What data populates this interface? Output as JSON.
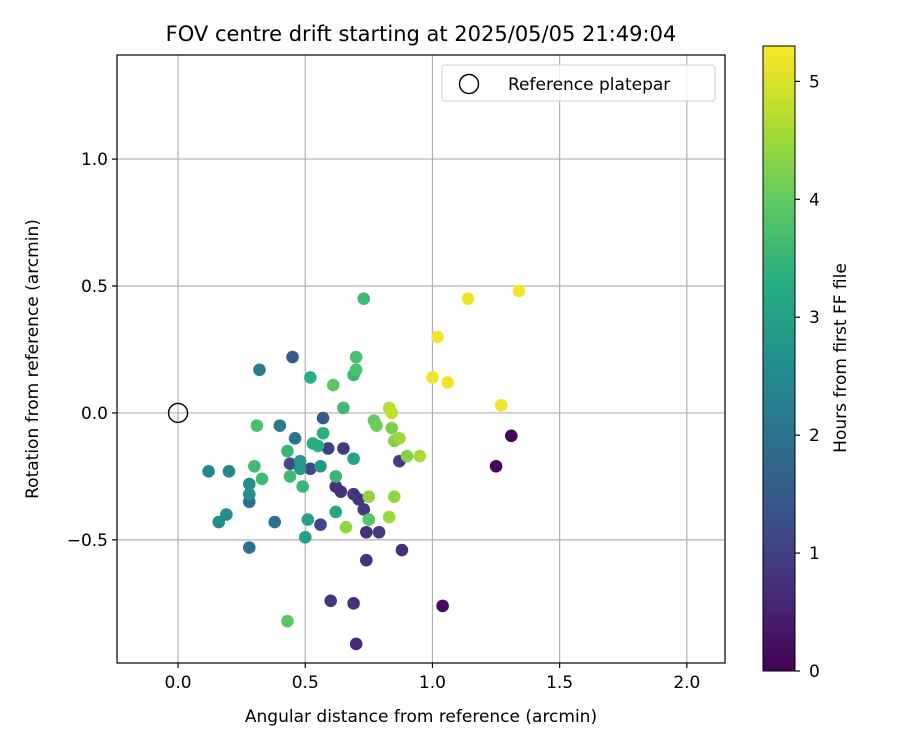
{
  "chart_data": {
    "type": "scatter",
    "title": "FOV centre drift starting at 2025/05/05 21:49:04",
    "xlabel": "Angular distance from reference (arcmin)",
    "ylabel": "Rotation from reference (arcmin)",
    "xlim": [
      -0.24,
      2.15
    ],
    "ylim": [
      -0.985,
      1.41
    ],
    "xticks": [
      0.0,
      0.5,
      1.0,
      1.5,
      2.0
    ],
    "xtick_labels": [
      "0.0",
      "0.5",
      "1.0",
      "1.5",
      "2.0"
    ],
    "yticks": [
      -0.5,
      0.0,
      0.5,
      1.0
    ],
    "ytick_labels": [
      "−0.5",
      "0.0",
      "0.5",
      "1.0"
    ],
    "grid": true,
    "legend": {
      "placement": "top-right",
      "entries": [
        "Reference platepar"
      ]
    },
    "reference_point": {
      "x": 0.0,
      "y": 0.0
    },
    "colorbar": {
      "label": "Hours from first FF file",
      "colormap": "viridis",
      "range": [
        0,
        5.3
      ],
      "ticks": [
        0,
        1,
        2,
        3,
        4,
        5
      ],
      "tick_labels": [
        "0",
        "1",
        "2",
        "3",
        "4",
        "5"
      ]
    },
    "points": [
      {
        "x": 1.31,
        "y": -0.09,
        "h": 0.05
      },
      {
        "x": 1.25,
        "y": -0.21,
        "h": 0.05
      },
      {
        "x": 1.04,
        "y": -0.76,
        "h": 0.15
      },
      {
        "x": 0.7,
        "y": -0.91,
        "h": 0.6
      },
      {
        "x": 0.69,
        "y": -0.75,
        "h": 0.7
      },
      {
        "x": 0.6,
        "y": -0.74,
        "h": 0.8
      },
      {
        "x": 0.74,
        "y": -0.58,
        "h": 0.7
      },
      {
        "x": 0.88,
        "y": -0.54,
        "h": 0.7
      },
      {
        "x": 0.79,
        "y": -0.47,
        "h": 0.9
      },
      {
        "x": 0.74,
        "y": -0.47,
        "h": 0.7
      },
      {
        "x": 0.73,
        "y": -0.38,
        "h": 0.9
      },
      {
        "x": 0.71,
        "y": -0.34,
        "h": 0.8
      },
      {
        "x": 0.69,
        "y": -0.32,
        "h": 0.8
      },
      {
        "x": 0.64,
        "y": -0.31,
        "h": 0.8
      },
      {
        "x": 0.62,
        "y": -0.29,
        "h": 0.7
      },
      {
        "x": 0.87,
        "y": -0.19,
        "h": 0.9
      },
      {
        "x": 0.65,
        "y": -0.14,
        "h": 0.9
      },
      {
        "x": 0.59,
        "y": -0.14,
        "h": 1.0
      },
      {
        "x": 0.56,
        "y": -0.44,
        "h": 1.1
      },
      {
        "x": 0.52,
        "y": -0.22,
        "h": 1.1
      },
      {
        "x": 0.44,
        "y": -0.2,
        "h": 1.2
      },
      {
        "x": 0.57,
        "y": -0.02,
        "h": 1.5
      },
      {
        "x": 0.45,
        "y": 0.22,
        "h": 1.5
      },
      {
        "x": 0.28,
        "y": -0.35,
        "h": 1.9
      },
      {
        "x": 0.38,
        "y": -0.43,
        "h": 1.9
      },
      {
        "x": 0.28,
        "y": -0.53,
        "h": 2.0
      },
      {
        "x": 0.46,
        "y": -0.1,
        "h": 2.0
      },
      {
        "x": 0.4,
        "y": -0.05,
        "h": 2.2
      },
      {
        "x": 0.32,
        "y": 0.17,
        "h": 2.2
      },
      {
        "x": 0.12,
        "y": -0.23,
        "h": 2.5
      },
      {
        "x": 0.2,
        "y": -0.23,
        "h": 2.5
      },
      {
        "x": 0.28,
        "y": -0.28,
        "h": 2.6
      },
      {
        "x": 0.28,
        "y": -0.32,
        "h": 2.6
      },
      {
        "x": 0.19,
        "y": -0.4,
        "h": 2.6
      },
      {
        "x": 0.16,
        "y": -0.43,
        "h": 2.6
      },
      {
        "x": 0.48,
        "y": -0.19,
        "h": 2.8
      },
      {
        "x": 0.48,
        "y": -0.22,
        "h": 2.8
      },
      {
        "x": 0.56,
        "y": -0.21,
        "h": 2.8
      },
      {
        "x": 0.51,
        "y": -0.42,
        "h": 3.0
      },
      {
        "x": 0.5,
        "y": -0.49,
        "h": 3.0
      },
      {
        "x": 0.62,
        "y": -0.39,
        "h": 3.1
      },
      {
        "x": 0.69,
        "y": -0.18,
        "h": 3.1
      },
      {
        "x": 0.55,
        "y": -0.13,
        "h": 3.3
      },
      {
        "x": 0.53,
        "y": -0.12,
        "h": 3.3
      },
      {
        "x": 0.57,
        "y": -0.08,
        "h": 3.3
      },
      {
        "x": 0.52,
        "y": 0.14,
        "h": 3.3
      },
      {
        "x": 0.49,
        "y": -0.29,
        "h": 3.5
      },
      {
        "x": 0.62,
        "y": -0.25,
        "h": 3.5
      },
      {
        "x": 0.33,
        "y": -0.26,
        "h": 3.6
      },
      {
        "x": 0.43,
        "y": -0.15,
        "h": 3.5
      },
      {
        "x": 0.44,
        "y": -0.25,
        "h": 3.6
      },
      {
        "x": 0.3,
        "y": -0.21,
        "h": 3.6
      },
      {
        "x": 0.31,
        "y": -0.05,
        "h": 3.7
      },
      {
        "x": 0.65,
        "y": 0.02,
        "h": 3.6
      },
      {
        "x": 0.69,
        "y": 0.15,
        "h": 3.5
      },
      {
        "x": 0.7,
        "y": 0.17,
        "h": 3.7
      },
      {
        "x": 0.7,
        "y": 0.22,
        "h": 3.7
      },
      {
        "x": 0.73,
        "y": 0.45,
        "h": 3.6
      },
      {
        "x": 0.61,
        "y": 0.11,
        "h": 3.9
      },
      {
        "x": 0.77,
        "y": -0.03,
        "h": 4.0
      },
      {
        "x": 0.78,
        "y": -0.05,
        "h": 4.1
      },
      {
        "x": 0.75,
        "y": -0.42,
        "h": 3.9
      },
      {
        "x": 0.43,
        "y": -0.82,
        "h": 3.9
      },
      {
        "x": 0.66,
        "y": -0.45,
        "h": 4.4
      },
      {
        "x": 0.75,
        "y": -0.33,
        "h": 4.4
      },
      {
        "x": 0.83,
        "y": -0.41,
        "h": 4.5
      },
      {
        "x": 0.85,
        "y": -0.33,
        "h": 4.4
      },
      {
        "x": 0.84,
        "y": -0.06,
        "h": 4.2
      },
      {
        "x": 0.85,
        "y": -0.11,
        "h": 4.3
      },
      {
        "x": 0.87,
        "y": -0.1,
        "h": 4.5
      },
      {
        "x": 0.9,
        "y": -0.17,
        "h": 4.3
      },
      {
        "x": 0.95,
        "y": -0.17,
        "h": 4.6
      },
      {
        "x": 0.83,
        "y": 0.02,
        "h": 4.7
      },
      {
        "x": 0.84,
        "y": 0.0,
        "h": 4.8
      },
      {
        "x": 1.0,
        "y": 0.14,
        "h": 5.2
      },
      {
        "x": 1.06,
        "y": 0.12,
        "h": 5.2
      },
      {
        "x": 1.02,
        "y": 0.3,
        "h": 5.2
      },
      {
        "x": 1.14,
        "y": 0.45,
        "h": 5.2
      },
      {
        "x": 1.27,
        "y": 0.03,
        "h": 5.2
      },
      {
        "x": 1.34,
        "y": 0.48,
        "h": 5.2
      }
    ]
  }
}
